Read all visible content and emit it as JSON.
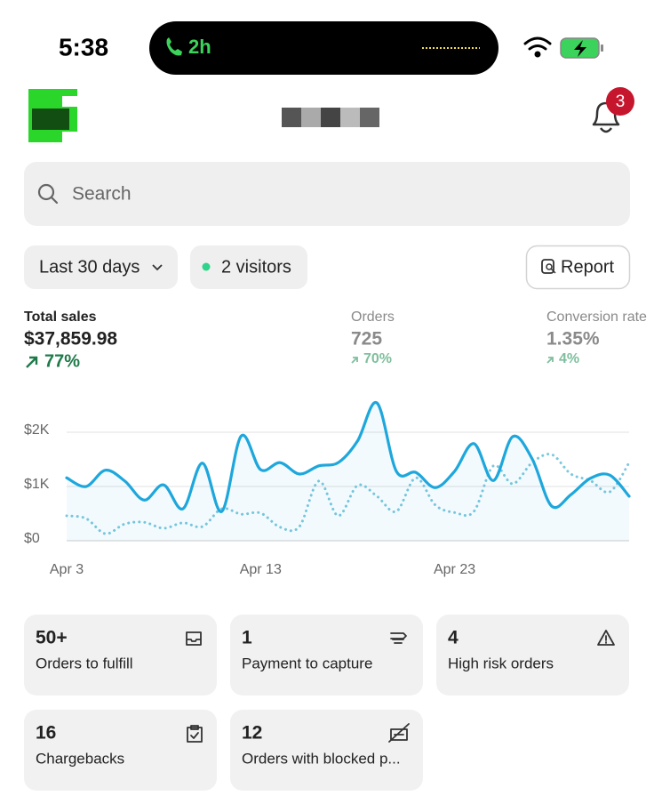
{
  "status_bar": {
    "time": "5:38",
    "call_duration": "2h"
  },
  "header": {
    "notification_count": 3
  },
  "search": {
    "placeholder": "Search"
  },
  "filters": {
    "date_range": "Last 30 days",
    "visitors": "2 visitors",
    "report": "Report"
  },
  "metrics": [
    {
      "label": "Total sales",
      "value": "$37,859.98",
      "change": "77%"
    },
    {
      "label": "Orders",
      "value": "725",
      "change": "70%"
    },
    {
      "label": "Conversion rate",
      "value": "1.35%",
      "change": "4%"
    }
  ],
  "chart_data": {
    "type": "line",
    "categories": [
      "Apr 3",
      null,
      null,
      null,
      null,
      null,
      null,
      null,
      null,
      null,
      "Apr 13",
      null,
      null,
      null,
      null,
      null,
      null,
      null,
      null,
      null,
      "Apr 23",
      null,
      null,
      null,
      null,
      null,
      null,
      null,
      null,
      null
    ],
    "series": [
      {
        "color": "#1ea7dc",
        "style": "solid",
        "area": true,
        "values": [
          1160,
          1000,
          1300,
          1100,
          750,
          1030,
          590,
          1430,
          540,
          1930,
          1310,
          1440,
          1230,
          1380,
          1440,
          1840,
          2540,
          1280,
          1260,
          980,
          1280,
          1790,
          1110,
          1920,
          1510,
          640,
          850,
          1150,
          1210,
          820
        ]
      },
      {
        "color": "#7cc7dc",
        "style": "dotted",
        "area": false,
        "values": [
          460,
          410,
          130,
          310,
          340,
          230,
          330,
          260,
          590,
          490,
          510,
          250,
          260,
          1100,
          460,
          1020,
          820,
          540,
          1160,
          660,
          520,
          540,
          1380,
          1050,
          1440,
          1590,
          1230,
          1110,
          900,
          1440
        ]
      }
    ],
    "ylim": [
      0,
      2600
    ],
    "yticks": [
      {
        "value": 0,
        "label": "$0"
      },
      {
        "value": 1000,
        "label": "$1K"
      },
      {
        "value": 2000,
        "label": "$2K"
      }
    ],
    "grid": true
  },
  "cards": [
    {
      "value": "50+",
      "label": "Orders to fulfill"
    },
    {
      "value": "1",
      "label": "Payment to capture"
    },
    {
      "value": "4",
      "label": "High risk orders"
    },
    {
      "value": "16",
      "label": "Chargebacks"
    },
    {
      "value": "12",
      "label": "Orders with blocked p..."
    }
  ]
}
